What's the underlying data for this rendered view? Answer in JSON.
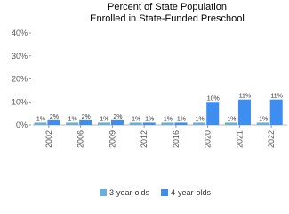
{
  "chart_data": {
    "type": "bar",
    "title": "Percent of State Population",
    "subtitle": "Enrolled in State-Funded Preschool",
    "categories": [
      "2002",
      "2006",
      "2009",
      "2012",
      "2016",
      "2020",
      "2021",
      "2022"
    ],
    "series": [
      {
        "name": "3-year-olds",
        "color": "#6baed6",
        "values": [
          1,
          1,
          1,
          1,
          1,
          1,
          1,
          1
        ],
        "value_labels": [
          "1%",
          "1%",
          "1%",
          "1%",
          "1%",
          "1%",
          "1%",
          "1%"
        ]
      },
      {
        "name": "4-year-olds",
        "color": "#3d8ef0",
        "values": [
          2,
          2,
          2,
          1,
          1,
          10,
          11,
          11
        ],
        "value_labels": [
          "2%",
          "2%",
          "2%",
          "1%",
          "1%",
          "10%",
          "11%",
          "11%"
        ]
      }
    ],
    "ylim": [
      0,
      40
    ],
    "yticks": [
      {
        "value": 0,
        "label": "0%"
      },
      {
        "value": 10,
        "label": "10%"
      },
      {
        "value": 20,
        "label": "20%"
      },
      {
        "value": 30,
        "label": "30%"
      },
      {
        "value": 40,
        "label": "40%"
      }
    ],
    "legend": "bottom"
  }
}
